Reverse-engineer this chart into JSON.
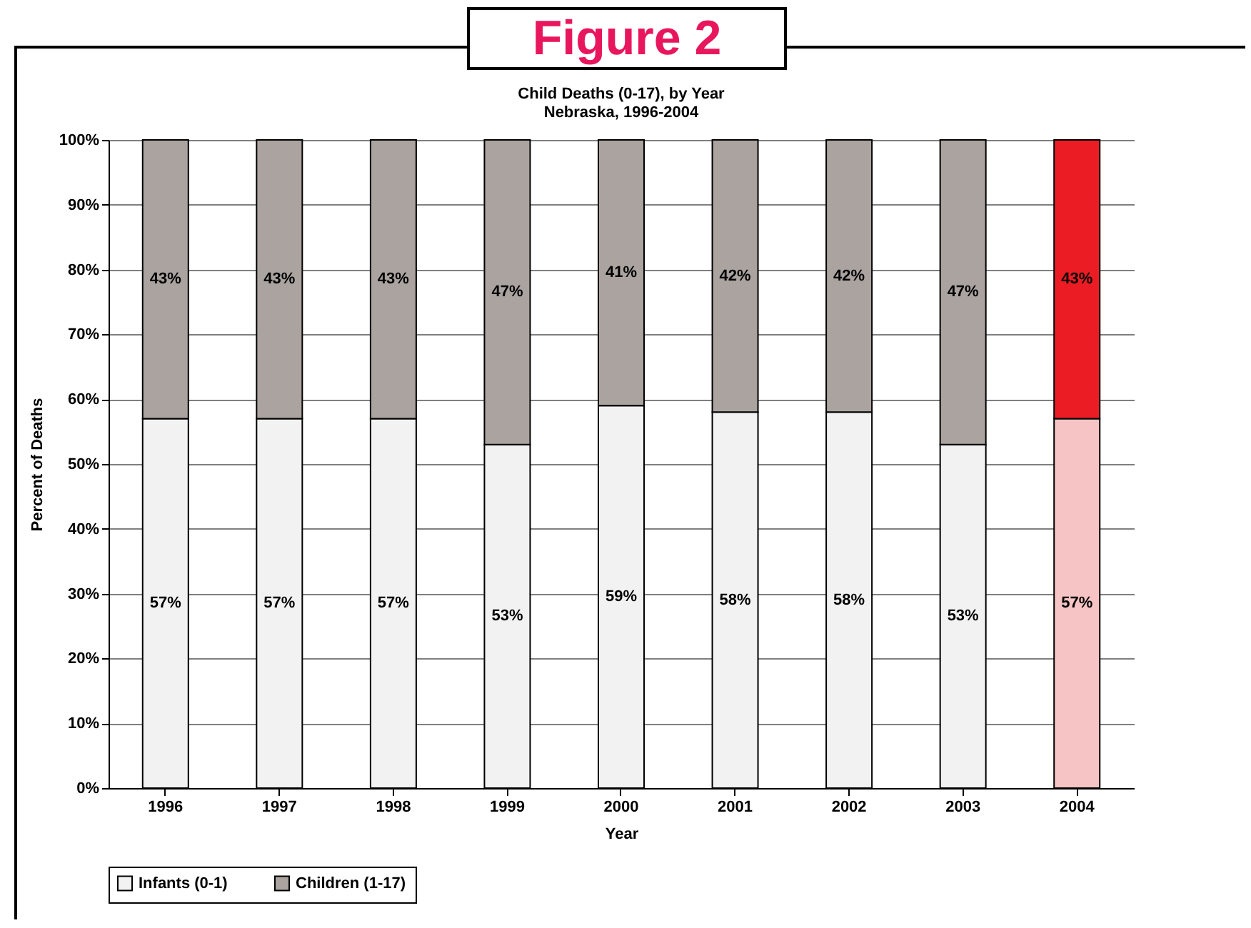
{
  "chart_data": {
    "type": "bar",
    "title": "Child Deaths (0-17), by Year",
    "subtitle": "Nebraska, 1996-2004",
    "xlabel": "Year",
    "ylabel": "Percent of Deaths",
    "annotations": [
      "Figure 2"
    ],
    "categories": [
      "1996",
      "1997",
      "1998",
      "1999",
      "2000",
      "2001",
      "2002",
      "2003",
      "2004"
    ],
    "stacked": true,
    "series": [
      {
        "name": "Infants (0-1)",
        "color": "#f2f2f2",
        "colors": [
          "#f2f2f2",
          "#f2f2f2",
          "#f2f2f2",
          "#f2f2f2",
          "#f2f2f2",
          "#f2f2f2",
          "#f2f2f2",
          "#f2f2f2",
          "#f6c4c4"
        ],
        "values": [
          57,
          57,
          57,
          53,
          59,
          58,
          58,
          53,
          57
        ]
      },
      {
        "name": "Children (1-17)",
        "color": "#aaa3a0",
        "colors": [
          "#aaa3a0",
          "#aaa3a0",
          "#aaa3a0",
          "#aaa3a0",
          "#aaa3a0",
          "#aaa3a0",
          "#aaa3a0",
          "#aaa3a0",
          "#ec1c24"
        ],
        "values": [
          43,
          43,
          43,
          47,
          41,
          42,
          42,
          47,
          43
        ]
      }
    ],
    "ylim": [
      0,
      100
    ],
    "yticks": [
      {
        "value": 0,
        "label": "0%"
      },
      {
        "value": 10,
        "label": "10%"
      },
      {
        "value": 20,
        "label": "20%"
      },
      {
        "value": 30,
        "label": "30%"
      },
      {
        "value": 40,
        "label": "40%"
      },
      {
        "value": 50,
        "label": "50%"
      },
      {
        "value": 60,
        "label": "60%"
      },
      {
        "value": 70,
        "label": "70%"
      },
      {
        "value": 80,
        "label": "80%"
      },
      {
        "value": 90,
        "label": "90%"
      },
      {
        "value": 100,
        "label": "100%"
      }
    ],
    "value_labels": [
      [
        "57%",
        "57%",
        "57%",
        "53%",
        "59%",
        "58%",
        "58%",
        "53%",
        "57%"
      ],
      [
        "43%",
        "43%",
        "43%",
        "47%",
        "41%",
        "42%",
        "42%",
        "47%",
        "43%"
      ]
    ],
    "grid": "y",
    "legend": "bottom"
  }
}
